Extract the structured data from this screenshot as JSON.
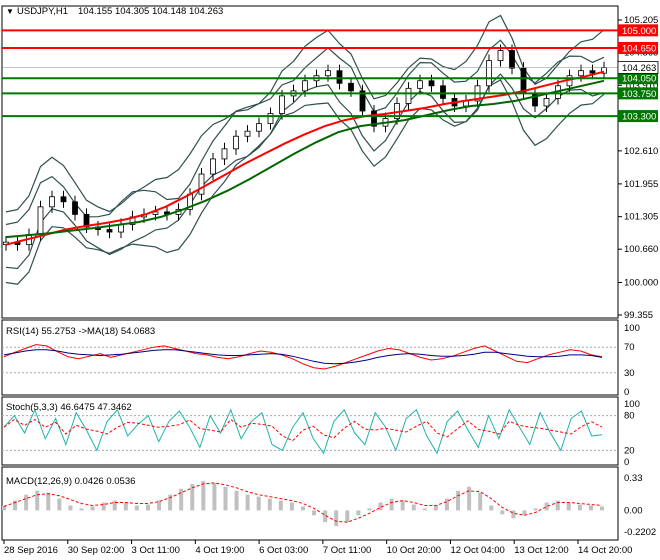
{
  "header": {
    "symbol_label": "USDJPY,H1",
    "ohlc": "104.155 104.305 104.148 104.263",
    "arrow": "▼"
  },
  "chart_data": {
    "type": "candlestick",
    "symbol": "USDJPY",
    "timeframe": "H1",
    "price_axis": {
      "ticks": [
        "105.205",
        "104.565",
        "103.910",
        "103.260",
        "102.610",
        "101.955",
        "101.305",
        "100.660",
        "100.000",
        "99.355"
      ],
      "range": [
        99.355,
        105.205
      ]
    },
    "level_lines": [
      {
        "value": 105.0,
        "label": "105.000",
        "color": "#ff0000"
      },
      {
        "value": 104.65,
        "label": "104.650",
        "color": "#ff0000"
      },
      {
        "value": 104.05,
        "label": "104.050",
        "color": "#007700"
      },
      {
        "value": 103.75,
        "label": "103.750",
        "color": "#007700"
      },
      {
        "value": 103.3,
        "label": "103.300",
        "color": "#007700"
      }
    ],
    "current_price": {
      "value": 104.263,
      "label": "104.263"
    },
    "close_series": [
      100.8,
      100.75,
      100.95,
      101.5,
      101.7,
      101.6,
      101.35,
      101.1,
      101.05,
      101.0,
      101.15,
      101.3,
      101.35,
      101.4,
      101.35,
      101.45,
      101.75,
      102.15,
      102.45,
      102.65,
      102.9,
      103.0,
      103.15,
      103.35,
      103.7,
      103.8,
      104.0,
      104.1,
      104.2,
      103.95,
      103.8,
      103.4,
      103.1,
      103.25,
      103.55,
      103.85,
      104.0,
      103.9,
      103.65,
      103.5,
      103.6,
      103.9,
      104.4,
      104.6,
      104.25,
      103.75,
      103.5,
      103.65,
      103.9,
      104.1,
      104.2,
      104.15,
      104.26
    ],
    "moving_averages": [
      {
        "color": "#ff0000",
        "values": [
          100.75,
          100.85,
          100.95,
          101.05,
          101.12,
          101.18,
          101.25,
          101.35,
          101.5,
          101.7,
          101.92,
          102.14,
          102.36,
          102.56,
          102.76,
          102.94,
          103.1,
          103.22,
          103.3,
          103.34,
          103.4,
          103.46,
          103.54,
          103.6,
          103.66,
          103.72,
          103.8,
          103.9,
          104.0,
          104.08,
          104.18
        ]
      },
      {
        "color": "#006600",
        "values": [
          100.9,
          100.94,
          100.98,
          101.03,
          101.08,
          101.14,
          101.2,
          101.3,
          101.45,
          101.62,
          101.82,
          102.05,
          102.3,
          102.55,
          102.78,
          102.98,
          103.1,
          103.16,
          103.22,
          103.32,
          103.42,
          103.5,
          103.54,
          103.6,
          103.7,
          103.8,
          103.9,
          104.0
        ]
      }
    ],
    "rsi": {
      "label": "RSI(14) 55.2753 ->MA(18) 54.0683",
      "ticks": [
        "100",
        "70",
        "30",
        "0"
      ],
      "range": [
        0,
        100
      ],
      "values": [
        55,
        62,
        68,
        74,
        72,
        63,
        55,
        52,
        56,
        60,
        54,
        58,
        62,
        66,
        70,
        72,
        68,
        64,
        60,
        58,
        54,
        52,
        55,
        60,
        64,
        62,
        58,
        52,
        44,
        38,
        36,
        40,
        46,
        52,
        58,
        64,
        68,
        66,
        60,
        54,
        50,
        52,
        56,
        62,
        68,
        72,
        64,
        56,
        48,
        46,
        52,
        58,
        62,
        66,
        64,
        58,
        55
      ],
      "ma_values": [
        58,
        61,
        64,
        66,
        66,
        64,
        61,
        59,
        58,
        57,
        58,
        59,
        61,
        63,
        65,
        66,
        66,
        64,
        62,
        60,
        58,
        57,
        57,
        58,
        59,
        60,
        59,
        56,
        52,
        48,
        45,
        44,
        45,
        47,
        50,
        54,
        57,
        59,
        60,
        59,
        57,
        56,
        56,
        57,
        59,
        62,
        62,
        60,
        58,
        56,
        55,
        55,
        56,
        58,
        58,
        57,
        54
      ]
    },
    "stochastic": {
      "label": "Stoch(5,3,3) 46.6475 47.3462",
      "ticks": [
        "100",
        "80",
        "20",
        "0"
      ],
      "range": [
        0,
        100
      ],
      "values": [
        60,
        80,
        50,
        90,
        40,
        75,
        30,
        85,
        55,
        20,
        70,
        90,
        45,
        65,
        80,
        35,
        70,
        88,
        60,
        25,
        80,
        50,
        90,
        40,
        70,
        85,
        30,
        20,
        60,
        85,
        40,
        15,
        70,
        90,
        50,
        30,
        85,
        60,
        20,
        75,
        90,
        45,
        15,
        70,
        88,
        55,
        25,
        80,
        40,
        90,
        60,
        30,
        85,
        50,
        20,
        75,
        88,
        45,
        47
      ]
    },
    "macd": {
      "label": "MACD(12,26,9) 0.0426 0.0536",
      "ticks": [
        "0.33",
        "0.00",
        "-0.2202"
      ],
      "range": [
        -0.2202,
        0.33
      ],
      "histogram": [
        0.05,
        0.1,
        0.16,
        0.2,
        0.18,
        0.12,
        0.05,
        0.02,
        0.04,
        0.08,
        0.1,
        0.08,
        0.05,
        0.06,
        0.1,
        0.16,
        0.22,
        0.27,
        0.3,
        0.28,
        0.24,
        0.2,
        0.16,
        0.14,
        0.12,
        0.1,
        0.08,
        0.04,
        -0.05,
        -0.12,
        -0.16,
        -0.12,
        -0.05,
        0.02,
        0.08,
        0.12,
        0.1,
        0.06,
        0.02,
        0.05,
        0.12,
        0.2,
        0.24,
        0.18,
        0.05,
        -0.04,
        -0.08,
        -0.05,
        0.02,
        0.08,
        0.1,
        0.08,
        0.06,
        0.05,
        0.04
      ],
      "signal": [
        0.04,
        0.08,
        0.12,
        0.16,
        0.17,
        0.15,
        0.11,
        0.07,
        0.05,
        0.06,
        0.08,
        0.08,
        0.07,
        0.07,
        0.09,
        0.13,
        0.18,
        0.23,
        0.27,
        0.28,
        0.26,
        0.23,
        0.19,
        0.16,
        0.14,
        0.12,
        0.1,
        0.07,
        0.02,
        -0.05,
        -0.11,
        -0.12,
        -0.08,
        -0.03,
        0.03,
        0.08,
        0.1,
        0.08,
        0.05,
        0.05,
        0.09,
        0.15,
        0.2,
        0.19,
        0.12,
        0.03,
        -0.03,
        -0.05,
        -0.02,
        0.04,
        0.08,
        0.08,
        0.07,
        0.06,
        0.05
      ]
    },
    "time_axis": [
      "28 Sep 2016",
      "30 Sep 02:00",
      "3 Oct 11:00",
      "4 Oct 19:00",
      "6 Oct 03:00",
      "7 Oct 11:00",
      "10 Oct 20:00",
      "12 Oct 04:00",
      "13 Oct 12:00",
      "14 Oct 20:00"
    ]
  }
}
